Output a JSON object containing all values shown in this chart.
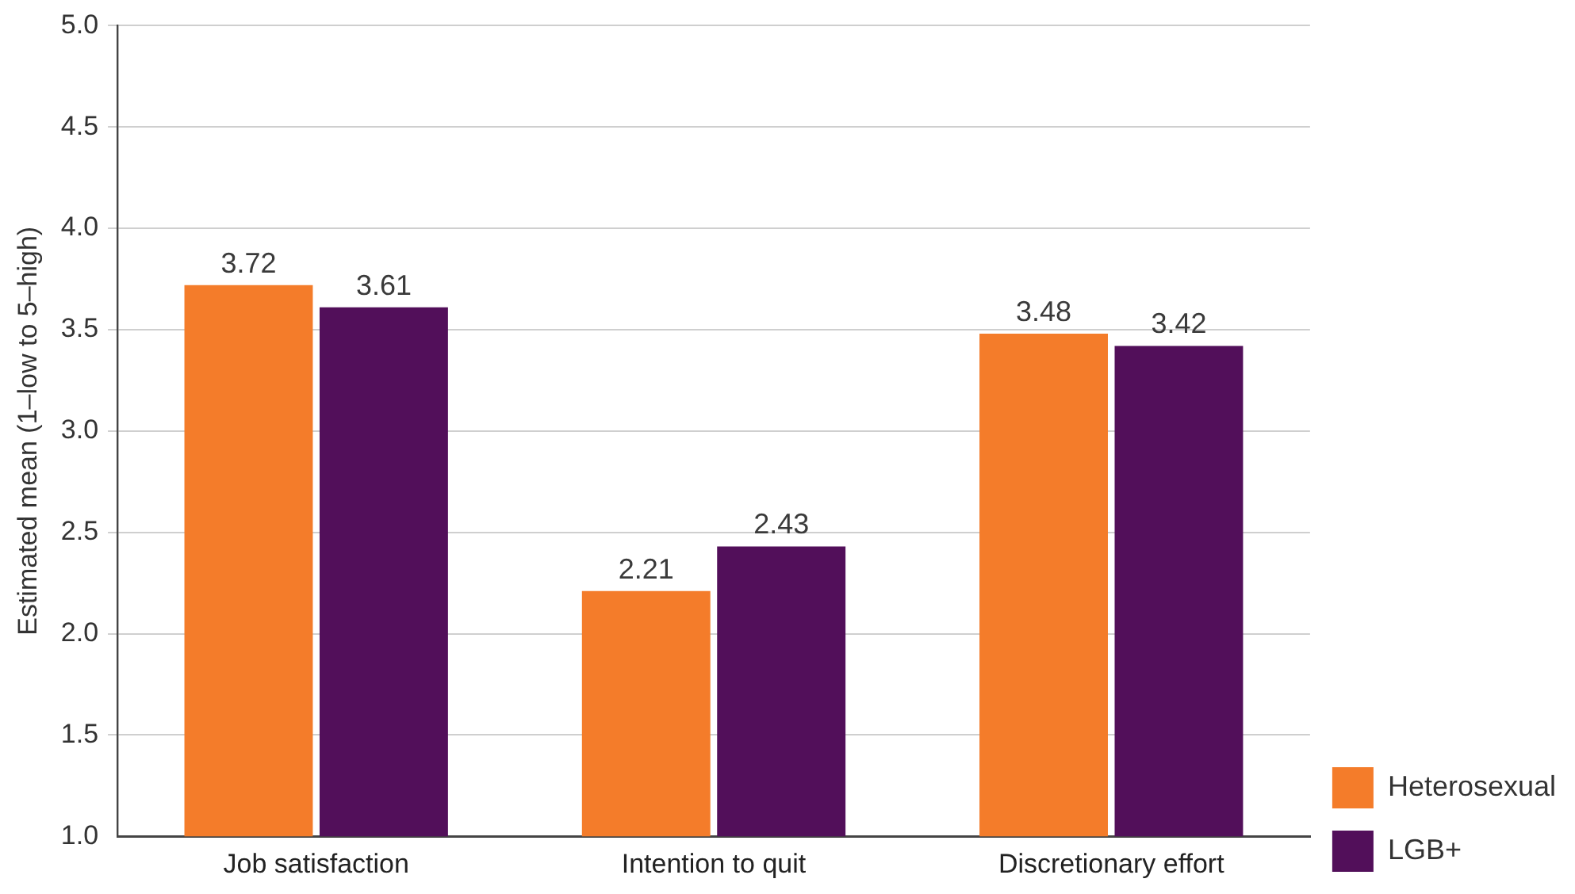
{
  "chart_data": {
    "type": "bar",
    "ylabel": "Estimated mean (1–low to 5–high)",
    "categories": [
      "Job satisfaction",
      "Intention to quit",
      "Discretionary effort"
    ],
    "series": [
      {
        "name": "Heterosexual",
        "color": "#f47c2a",
        "values": [
          3.72,
          2.21,
          3.48
        ]
      },
      {
        "name": "LGB+",
        "color": "#520f5a",
        "values": [
          3.61,
          2.43,
          3.42
        ]
      }
    ],
    "ylim": [
      1.0,
      5.0
    ],
    "yticks": [
      {
        "value": 1,
        "label": "1.0"
      },
      {
        "value": 1.5,
        "label": "1.5"
      },
      {
        "value": 2,
        "label": "2.0"
      },
      {
        "value": 2.5,
        "label": "2.5"
      },
      {
        "value": 3,
        "label": "3.0"
      },
      {
        "value": 3.5,
        "label": "3.5"
      },
      {
        "value": 4,
        "label": "4.0"
      },
      {
        "value": 4.5,
        "label": "4.5"
      },
      {
        "value": 5,
        "label": "5.0"
      }
    ],
    "grid": "y",
    "legend": "bottom right",
    "data_labels": true
  }
}
